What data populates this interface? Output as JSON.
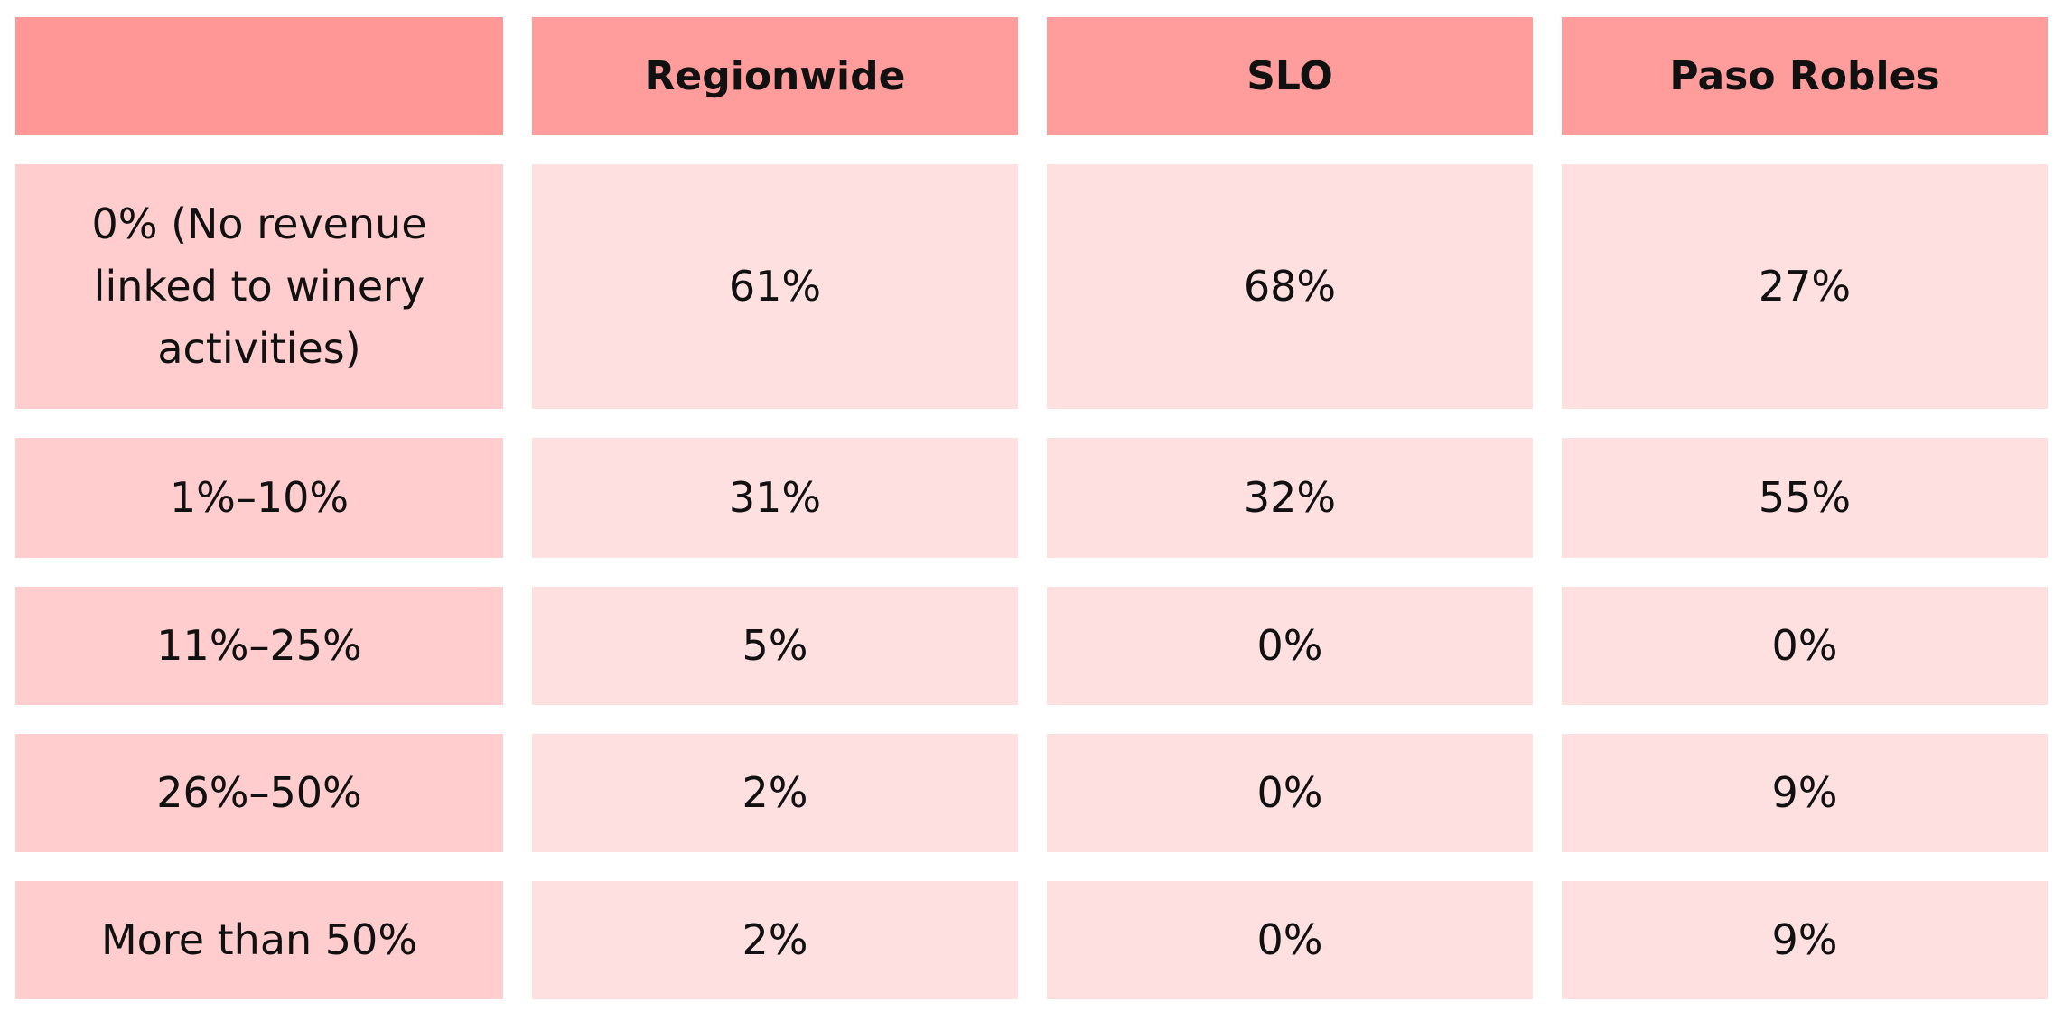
{
  "table": {
    "header": [
      "Regionwide",
      "SLO",
      "Paso Robles"
    ],
    "rows": [
      [
        "0% (No revenue linked to winery activities)",
        "61%",
        "68%",
        "27%"
      ],
      [
        "1%–10%",
        "31%",
        "32%",
        "55%"
      ],
      [
        "11%–25%",
        "5%",
        "0%",
        "0%"
      ],
      [
        "26%–50%",
        "2%",
        "0%",
        "9%"
      ],
      [
        "More than 50%",
        "2%",
        "0%",
        "9%"
      ]
    ]
  }
}
